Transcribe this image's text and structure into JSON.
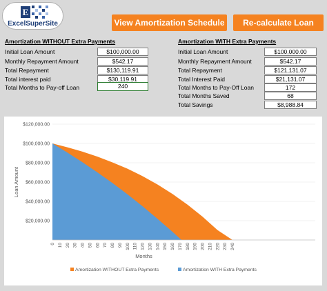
{
  "logo": {
    "text": "ExcelSuperSite",
    "letter": "E"
  },
  "buttons": {
    "schedule": "View Amortization Schedule",
    "recalc": "Re-calculate Loan"
  },
  "without": {
    "title": "Amortization WITHOUT Extra Payments",
    "rows": [
      {
        "label": "Initial Loan Amount",
        "value": "$100,000.00"
      },
      {
        "label": "Monthly Repayment Amount",
        "value": "$542.17"
      },
      {
        "label": "Total Repayment",
        "value": "$130,119.91"
      },
      {
        "label": "Total interest paid",
        "value": "$30,119.91"
      },
      {
        "label": "Total Months to Pay-off Loan",
        "value": "240"
      }
    ]
  },
  "with": {
    "title": "Amortization WITH Extra Payments",
    "rows": [
      {
        "label": "Initial Loan Amount",
        "value": "$100,000.00"
      },
      {
        "label": "Monthly Repayment Amount",
        "value": "$542.17"
      },
      {
        "label": "Total Repayment",
        "value": "$121,131.07"
      },
      {
        "label": "Total Interest Paid",
        "value": "$21,131.07"
      },
      {
        "label": "Total Months to Pay-Off Loan",
        "value": "172"
      },
      {
        "label": "Total Months Saved",
        "value": "68"
      },
      {
        "label": "Total Savings",
        "value": "$8,988.84"
      }
    ]
  },
  "colors": {
    "orange": "#f58220",
    "blue": "#5b9bd5",
    "logo_blue": "#1f3f78"
  },
  "chart_data": {
    "type": "area",
    "xlabel": "Months",
    "ylabel": "Loan Amount",
    "ylim": [
      0,
      120000
    ],
    "yticks": [
      "",
      "$20,000.00",
      "$40,000.00",
      "$60,000.00",
      "$80,000.00",
      "$100,000.00",
      "$120,000.00"
    ],
    "xticks": [
      "0",
      "10",
      "20",
      "30",
      "40",
      "50",
      "60",
      "70",
      "80",
      "90",
      "100",
      "110",
      "120",
      "130",
      "140",
      "150",
      "160",
      "170",
      "180",
      "190",
      "200",
      "210",
      "220",
      "230",
      "240"
    ],
    "xlim": [
      0,
      240
    ],
    "legend_position": "bottom",
    "series": [
      {
        "name": "Amortization WITHOUT Extra Payments",
        "color": "#f58220",
        "x": [
          0,
          20,
          40,
          60,
          80,
          100,
          120,
          140,
          160,
          180,
          200,
          220,
          240
        ],
        "values": [
          100000,
          96000,
          91500,
          86300,
          80400,
          73800,
          66200,
          57500,
          47700,
          36600,
          24200,
          10300,
          0
        ]
      },
      {
        "name": "Amortization WITH Extra Payments",
        "color": "#5b9bd5",
        "x": [
          0,
          20,
          40,
          60,
          80,
          100,
          120,
          140,
          160,
          172
        ],
        "values": [
          100000,
          90500,
          80500,
          70000,
          59000,
          47300,
          35000,
          22000,
          8500,
          0
        ]
      }
    ]
  }
}
